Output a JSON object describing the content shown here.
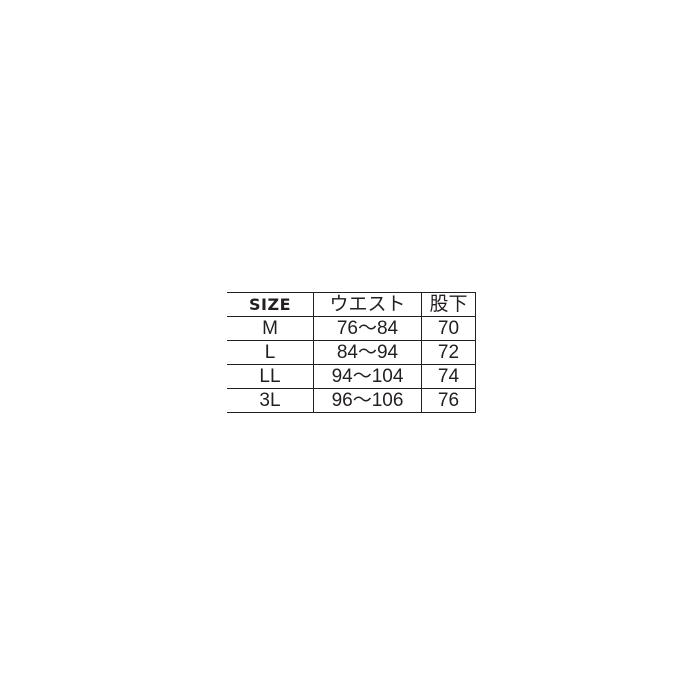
{
  "table": {
    "headers": [
      "SIZE",
      "ウエスト",
      "股下"
    ],
    "rows": [
      [
        "M",
        "76〜84",
        "70"
      ],
      [
        "L",
        "84〜94",
        "72"
      ],
      [
        "LL",
        "94〜104",
        "74"
      ],
      [
        "3L",
        "96〜106",
        "76"
      ]
    ]
  }
}
